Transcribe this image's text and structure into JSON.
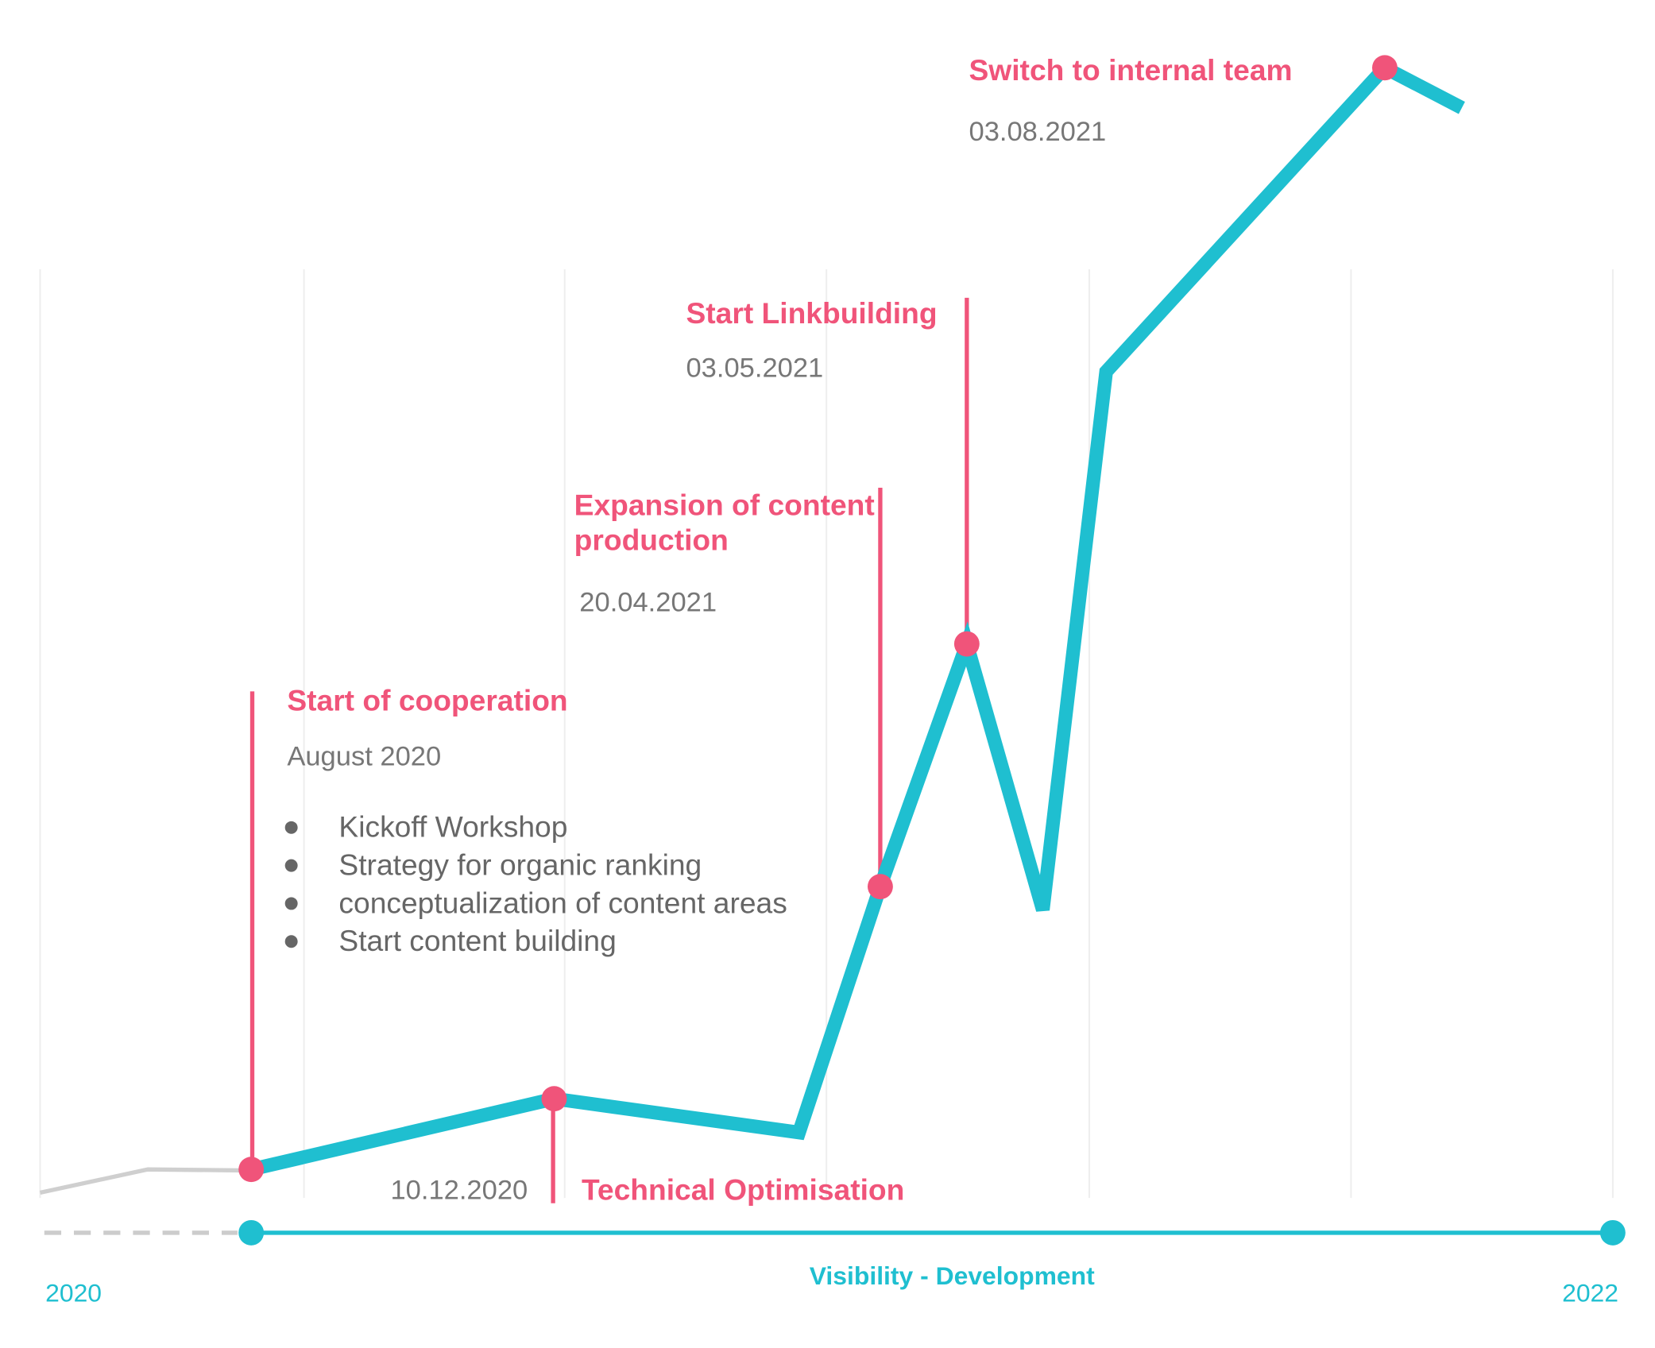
{
  "timeline": {
    "label": "Visibility - Development",
    "start": "2020",
    "end": "2022"
  },
  "milestones": [
    {
      "title": "Start of cooperation",
      "date": "August 2020",
      "items": [
        "Kickoff Workshop",
        "Strategy for organic ranking",
        "conceptualization of content areas",
        "Start content building"
      ]
    },
    {
      "title": "Technical Optimisation",
      "date": "10.12.2020"
    },
    {
      "title_lines": [
        "Expansion of content",
        "production"
      ],
      "date": "20.04.2021"
    },
    {
      "title": "Start Linkbuilding",
      "date": "03.05.2021"
    },
    {
      "title": "Switch to internal team",
      "date": "03.08.2021"
    }
  ]
}
